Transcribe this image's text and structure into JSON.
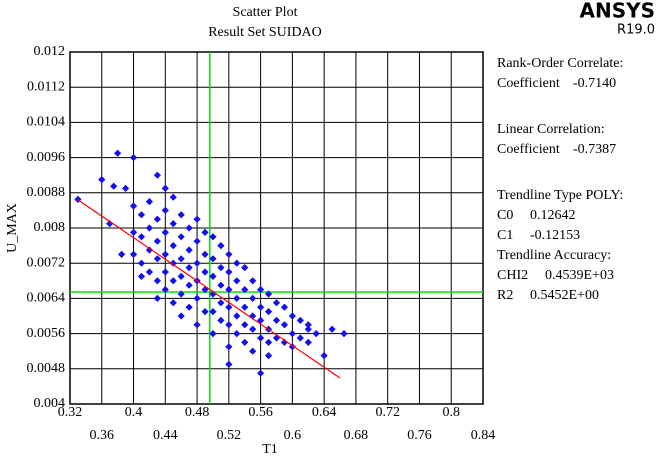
{
  "chart_data": {
    "type": "scatter",
    "title": "Scatter Plot",
    "subtitle": "Result Set SUIDAO",
    "brand": "ANSYS",
    "version": "R19.0",
    "xlabel": "T1",
    "ylabel": "U_MAX",
    "xlim": [
      0.32,
      0.84
    ],
    "ylim": [
      0.004,
      0.012
    ],
    "xticks": [
      0.32,
      0.36,
      0.4,
      0.44,
      0.48,
      0.52,
      0.56,
      0.6,
      0.64,
      0.68,
      0.72,
      0.76,
      0.8,
      0.84
    ],
    "yticks": [
      0.004,
      0.0048,
      0.0056,
      0.0064,
      0.0072,
      0.008,
      0.0088,
      0.0096,
      0.0104,
      0.0112,
      0.012
    ],
    "grid": true,
    "color": "#1010f0",
    "x": [
      0.33,
      0.36,
      0.375,
      0.38,
      0.4,
      0.39,
      0.37,
      0.385,
      0.665,
      0.62,
      0.56,
      0.52,
      0.64,
      0.6,
      0.57,
      0.45,
      0.43,
      0.44,
      0.63,
      0.65,
      0.4,
      0.4,
      0.4,
      0.41,
      0.41,
      0.41,
      0.41,
      0.42,
      0.42,
      0.42,
      0.42,
      0.43,
      0.43,
      0.43,
      0.43,
      0.43,
      0.44,
      0.44,
      0.44,
      0.44,
      0.44,
      0.45,
      0.45,
      0.45,
      0.45,
      0.45,
      0.46,
      0.46,
      0.46,
      0.46,
      0.46,
      0.46,
      0.47,
      0.47,
      0.47,
      0.47,
      0.47,
      0.48,
      0.48,
      0.48,
      0.48,
      0.48,
      0.48,
      0.49,
      0.49,
      0.49,
      0.49,
      0.49,
      0.5,
      0.5,
      0.5,
      0.5,
      0.5,
      0.5,
      0.51,
      0.51,
      0.51,
      0.51,
      0.51,
      0.52,
      0.52,
      0.52,
      0.52,
      0.52,
      0.52,
      0.53,
      0.53,
      0.53,
      0.53,
      0.53,
      0.54,
      0.54,
      0.54,
      0.54,
      0.54,
      0.55,
      0.55,
      0.55,
      0.55,
      0.55,
      0.56,
      0.56,
      0.56,
      0.56,
      0.57,
      0.57,
      0.57,
      0.57,
      0.58,
      0.58,
      0.58,
      0.59,
      0.59,
      0.59,
      0.6,
      0.6,
      0.61,
      0.61,
      0.62,
      0.62
    ],
    "y": [
      0.00865,
      0.0091,
      0.00895,
      0.0097,
      0.0096,
      0.0089,
      0.0081,
      0.0074,
      0.0056,
      0.0058,
      0.0047,
      0.0049,
      0.0051,
      0.0053,
      0.0051,
      0.0087,
      0.0092,
      0.0089,
      0.0056,
      0.0057,
      0.0085,
      0.0079,
      0.0074,
      0.0083,
      0.0078,
      0.0072,
      0.0069,
      0.0086,
      0.008,
      0.0075,
      0.007,
      0.0082,
      0.0077,
      0.0073,
      0.0068,
      0.0064,
      0.0084,
      0.0079,
      0.0074,
      0.007,
      0.0066,
      0.0081,
      0.0076,
      0.0072,
      0.0068,
      0.0063,
      0.0083,
      0.0078,
      0.0073,
      0.0069,
      0.0065,
      0.006,
      0.008,
      0.0075,
      0.0071,
      0.0067,
      0.0062,
      0.0082,
      0.0077,
      0.0072,
      0.0068,
      0.0064,
      0.0058,
      0.0079,
      0.0074,
      0.007,
      0.0066,
      0.0061,
      0.0078,
      0.0073,
      0.0069,
      0.0065,
      0.0061,
      0.0056,
      0.0076,
      0.0071,
      0.0067,
      0.0063,
      0.0059,
      0.0074,
      0.007,
      0.0066,
      0.0062,
      0.0058,
      0.0053,
      0.0072,
      0.0068,
      0.0064,
      0.006,
      0.0056,
      0.0071,
      0.0066,
      0.0062,
      0.0058,
      0.0054,
      0.0068,
      0.0064,
      0.006,
      0.0057,
      0.0052,
      0.0066,
      0.0062,
      0.0059,
      0.0055,
      0.0065,
      0.0061,
      0.0057,
      0.0054,
      0.0063,
      0.0059,
      0.0055,
      0.0062,
      0.0058,
      0.0054,
      0.006,
      0.0056,
      0.0059,
      0.0055,
      0.0057,
      0.0054
    ],
    "trendline": {
      "color": "#ff0000",
      "x": [
        0.33,
        0.66
      ],
      "y": [
        0.00864,
        0.00459
      ]
    },
    "crosshair": {
      "color": "#00e000",
      "x": 0.496,
      "y": 0.006545
    },
    "stats": [
      {
        "heading": "Rank-Order Correlate:"
      },
      {
        "label": "Coefficient",
        "value": "-0.7140"
      },
      {
        "heading": "Linear Correlation:"
      },
      {
        "label": "Coefficient",
        "value": "-0.7387"
      },
      {
        "heading": "Trendline Type POLY:"
      },
      {
        "label": "C0",
        "value": "0.12642"
      },
      {
        "label": "C1",
        "value": "-0.12153"
      },
      {
        "heading": "Trendline Accuracy:"
      },
      {
        "label": "CHI2",
        "value": "0.4539E+03"
      },
      {
        "label": "R2",
        "value": "0.5452E+00"
      }
    ]
  }
}
